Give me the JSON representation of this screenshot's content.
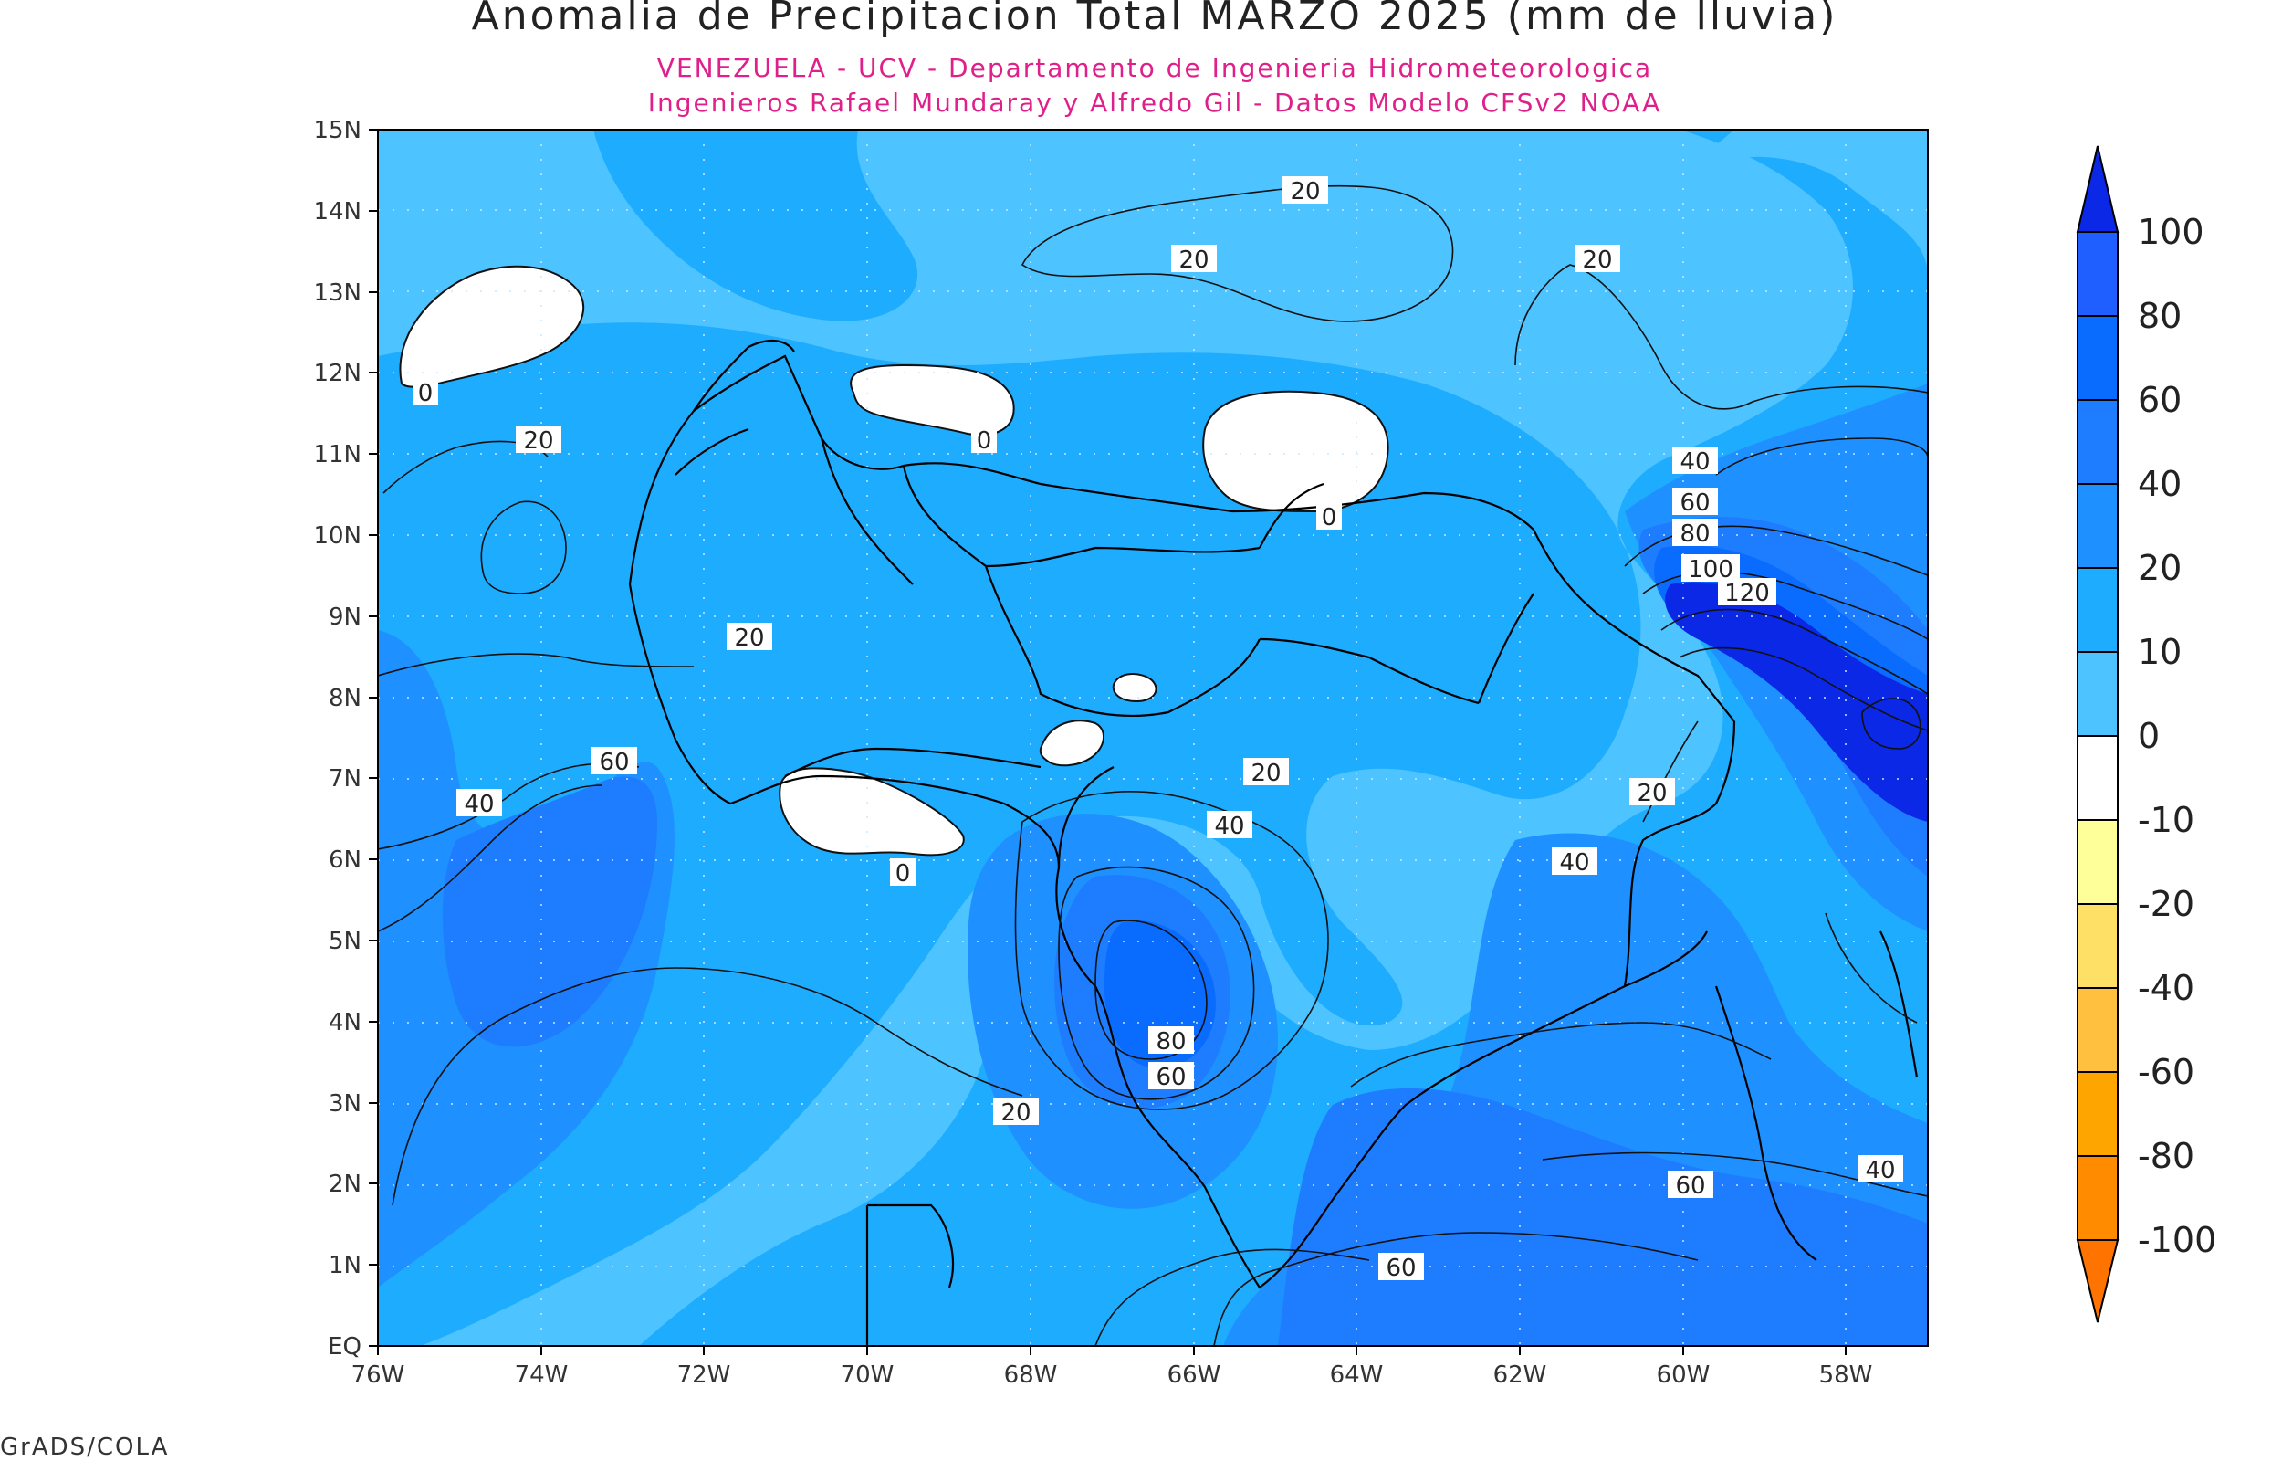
{
  "title": "Anomalia de Precipitacion Total MARZO 2025 (mm de lluvia)",
  "subtitle_1": "VENEZUELA - UCV - Departamento de Ingenieria Hidrometeorologica",
  "subtitle_2": "Ingenieros Rafael Mundaray y Alfredo Gil - Datos Modelo CFSv2 NOAA",
  "credit": "GrADS/COLA",
  "map": {
    "region": "Venezuela",
    "lon_range": [
      -76,
      -57
    ],
    "lat_range": [
      0,
      15
    ],
    "lat_ticks": [
      "15N",
      "14N",
      "13N",
      "12N",
      "11N",
      "10N",
      "9N",
      "8N",
      "7N",
      "6N",
      "5N",
      "4N",
      "3N",
      "2N",
      "1N",
      "EQ"
    ],
    "lon_ticks": [
      "76W",
      "74W",
      "72W",
      "70W",
      "68W",
      "66W",
      "64W",
      "62W",
      "60W",
      "58W"
    ],
    "contour_labels": [
      "20",
      "20",
      "20",
      "0",
      "20",
      "0",
      "0",
      "40",
      "60",
      "80",
      "100",
      "120",
      "20",
      "60",
      "40",
      "20",
      "40",
      "20",
      "40",
      "0",
      "80",
      "60",
      "20",
      "60",
      "60",
      "40"
    ]
  },
  "colorbar": {
    "labels": [
      "100",
      "80",
      "60",
      "40",
      "20",
      "10",
      "0",
      "-10",
      "-20",
      "-40",
      "-60",
      "-80",
      "-100"
    ],
    "colors": [
      "#1f5fff",
      "#0a6bff",
      "#1e7dff",
      "#1e90ff",
      "#1eacff",
      "#4dc3ff",
      "#ffffff",
      "#ffff99",
      "#ffe066",
      "#ffc040",
      "#ffa500",
      "#ff8c00",
      "#ff7400"
    ],
    "top_arrow_color": "#0a28e6",
    "bottom_arrow_color": "#ff7400"
  }
}
